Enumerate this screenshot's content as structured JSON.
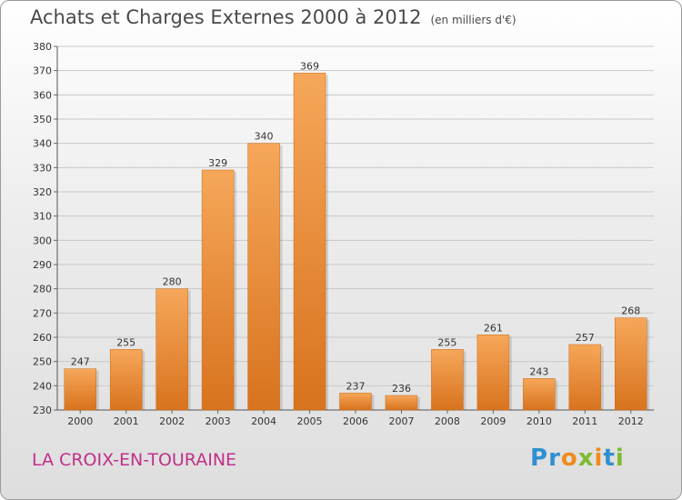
{
  "title": "Achats et Charges Externes 2000 à 2012",
  "subtitle": "(en milliers d'€)",
  "commune": "LA CROIX-EN-TOURAINE",
  "logo": {
    "letters": [
      "P",
      "r",
      "o",
      "x",
      "i",
      "t",
      "i"
    ],
    "colors": [
      "#2f8fd1",
      "#2f8fd1",
      "#f08a1c",
      "#7dbb2f",
      "#f08a1c",
      "#2f8fd1",
      "#7dbb2f"
    ]
  },
  "colors": {
    "bar_top": "#f6a75a",
    "bar_bottom": "#d8731e",
    "grid": "#c8c8c8",
    "commune": "#c0308a"
  },
  "chart_data": {
    "type": "bar",
    "title": "Achats et Charges Externes 2000 à 2012",
    "subtitle": "(en milliers d'€)",
    "categories": [
      "2000",
      "2001",
      "2002",
      "2003",
      "2004",
      "2005",
      "2006",
      "2007",
      "2008",
      "2009",
      "2010",
      "2011",
      "2012"
    ],
    "values": [
      247,
      255,
      280,
      329,
      340,
      369,
      237,
      236,
      255,
      261,
      243,
      257,
      268
    ],
    "ylim": [
      230,
      380
    ],
    "yticks": [
      230,
      240,
      250,
      260,
      270,
      280,
      290,
      300,
      310,
      320,
      330,
      340,
      350,
      360,
      370,
      380
    ],
    "grid": true
  }
}
